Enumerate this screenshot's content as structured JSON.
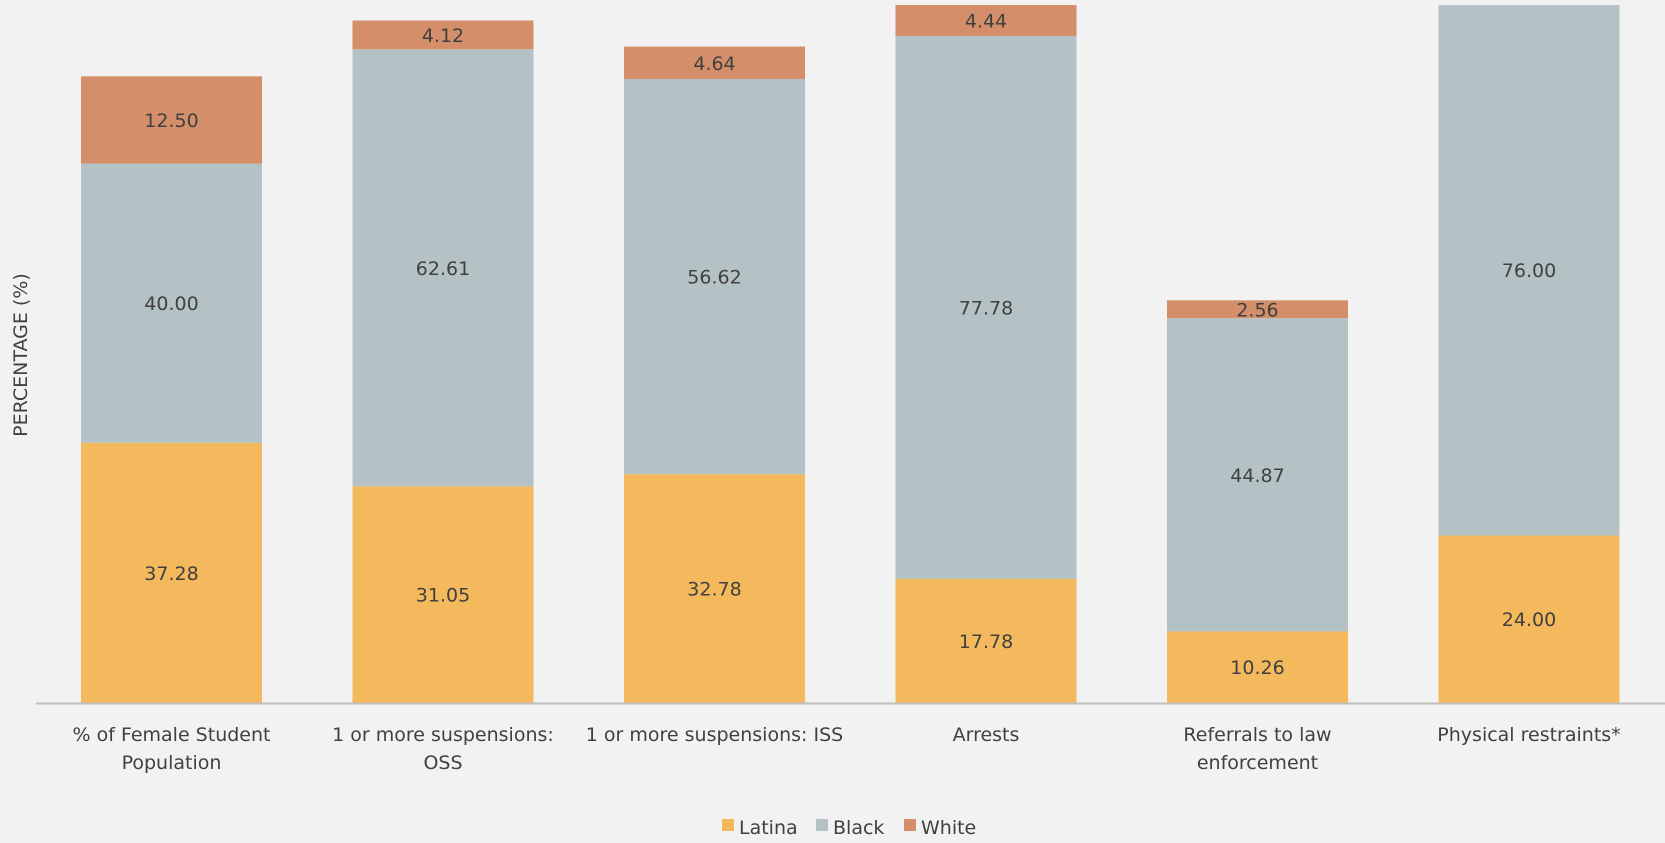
{
  "chart_data": {
    "type": "bar",
    "stacked": true,
    "ylabel": "PERCENTAGE (%)",
    "xlabel": "",
    "ylim": [
      0,
      100
    ],
    "grid": false,
    "legend_position": "bottom",
    "categories": [
      [
        "% of Female Student",
        "Population"
      ],
      [
        "1 or more suspensions:",
        "OSS"
      ],
      [
        "1 or more suspensions: ISS"
      ],
      [
        "Arrests"
      ],
      [
        "Referrals to law",
        "enforcement"
      ],
      [
        "Physical restraints*"
      ]
    ],
    "series": [
      {
        "name": "Latina",
        "color": "#f4b95c",
        "values": [
          37.28,
          31.05,
          32.78,
          17.78,
          10.26,
          24.0
        ],
        "labels": [
          "37.28",
          "31.05",
          "32.78",
          "17.78",
          "10.26",
          "24.00"
        ]
      },
      {
        "name": "Black",
        "color": "#b4c2c5",
        "values": [
          40.0,
          62.61,
          56.62,
          77.78,
          44.87,
          76.0
        ],
        "labels": [
          "40.00",
          "62.61",
          "56.62",
          "77.78",
          "44.87",
          "76.00"
        ]
      },
      {
        "name": "White",
        "color": "#d48f6a",
        "values": [
          12.5,
          4.12,
          4.64,
          4.44,
          2.56,
          0
        ],
        "labels": [
          "12.50",
          "4.12",
          "4.64",
          "4.44",
          "2.56",
          ""
        ]
      }
    ],
    "axis_color": "#bfbfbf"
  }
}
